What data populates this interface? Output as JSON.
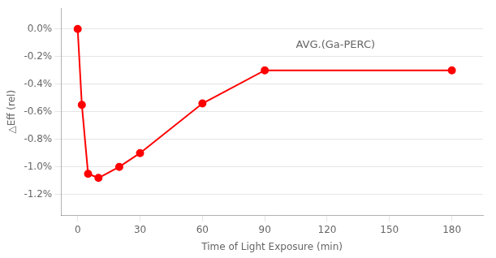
{
  "chart_data": {
    "type": "line",
    "x": [
      0,
      2,
      5,
      10,
      20,
      30,
      60,
      90,
      180
    ],
    "values": [
      0.0,
      -0.0055,
      -0.0105,
      -0.0108,
      -0.01,
      -0.009,
      -0.0054,
      -0.003,
      -0.003
    ],
    "color": "#FF0000",
    "marker": "o",
    "xlabel": "Time of Light Exposure (min)",
    "ylabel": "△Eff (rel)",
    "annotations": [
      {
        "x": 105,
        "y": -0.0008,
        "text": "AVG.(Ga-PERC)"
      }
    ],
    "xlim": [
      -8,
      195
    ],
    "ylim": [
      -0.0135,
      0.0015
    ],
    "xticks": [
      0,
      30,
      60,
      90,
      120,
      150,
      180
    ],
    "yticks": [
      {
        "value": 0.0,
        "label": "0.0%"
      },
      {
        "value": -0.002,
        "label": "-0.2%"
      },
      {
        "value": -0.004,
        "label": "-0.4%"
      },
      {
        "value": -0.006,
        "label": "-0.6%"
      },
      {
        "value": -0.008,
        "label": "-0.8%"
      },
      {
        "value": -0.01,
        "label": "-1.0%"
      },
      {
        "value": -0.012,
        "label": "-1.2%"
      }
    ],
    "grid": "y"
  }
}
